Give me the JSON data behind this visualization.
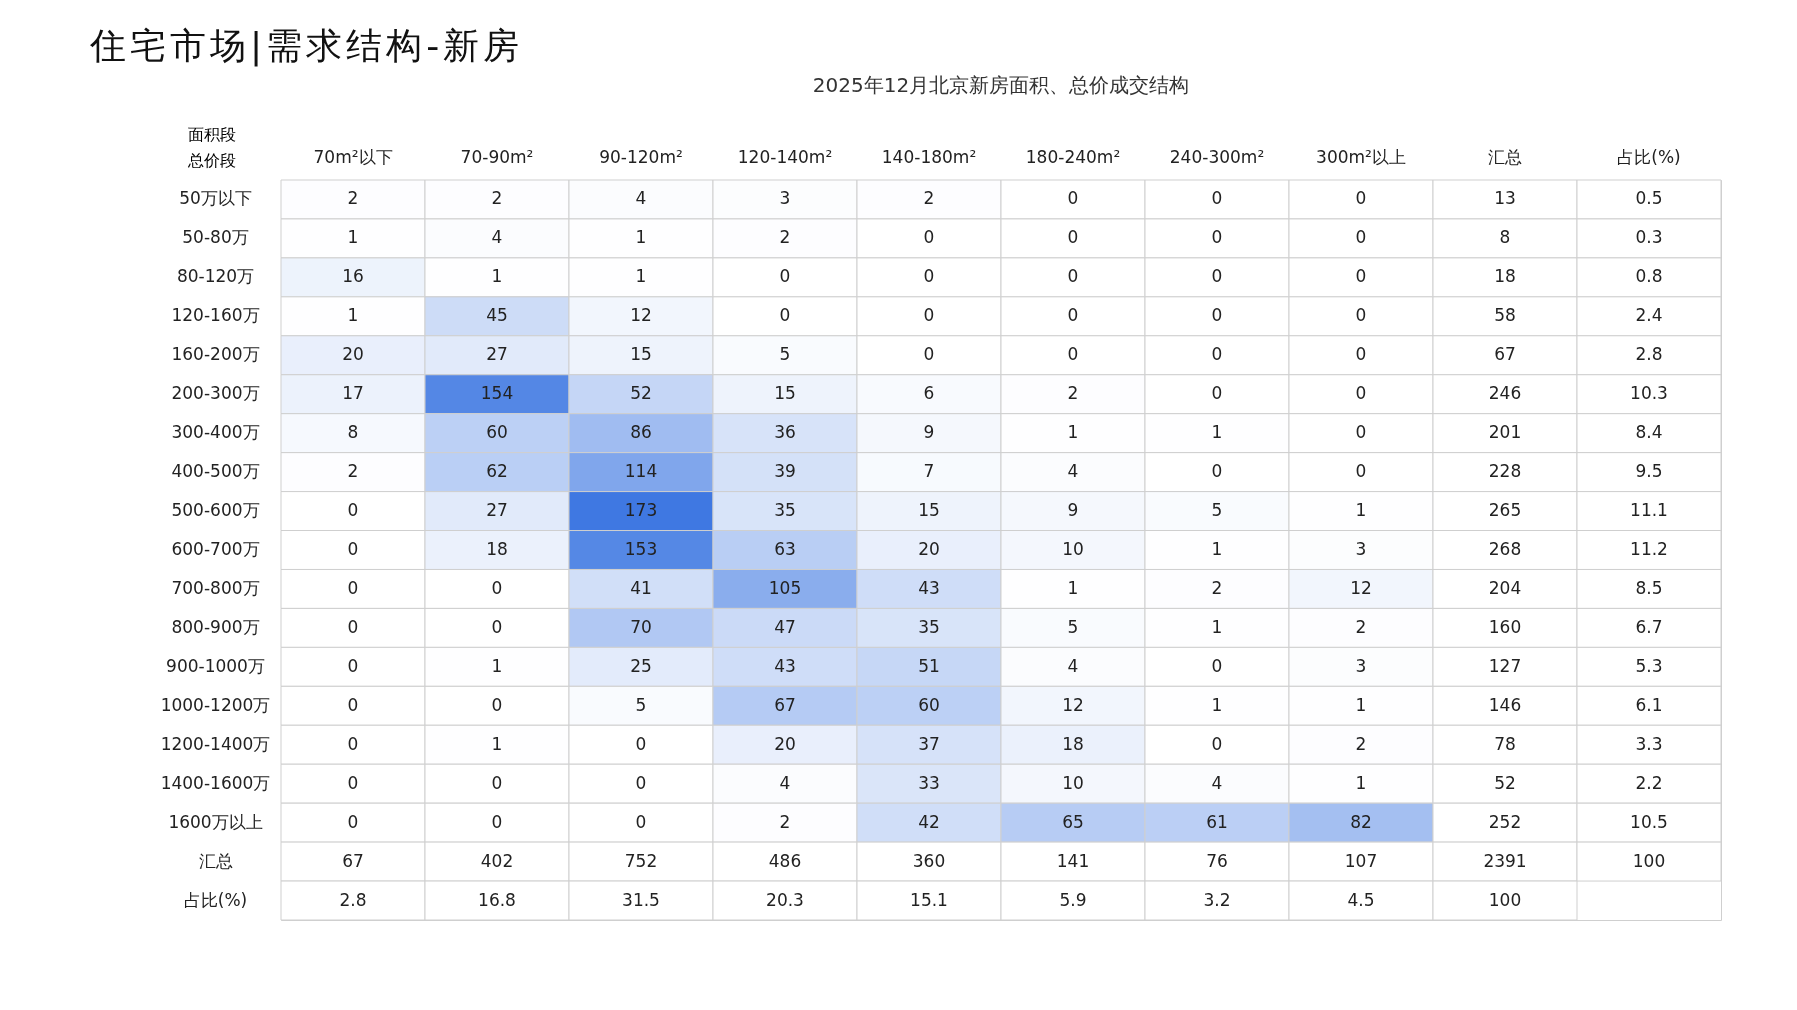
{
  "chart_data": {
    "type": "heatmap",
    "subtitle": "住宅市场|需求结构-新房",
    "title": "2025年12月北京新房面积、总价成交结构",
    "xlabel": "面积段",
    "ylabel": "总价段",
    "categories": [
      "70m²以下",
      "70-90m²",
      "90-120m²",
      "120-140m²",
      "140-180m²",
      "180-240m²",
      "240-300m²",
      "300m²以上",
      "汇总",
      "占比(%)"
    ],
    "y_categories": [
      "50万以下",
      "50-80万",
      "80-120万",
      "120-160万",
      "160-200万",
      "200-300万",
      "300-400万",
      "400-500万",
      "500-600万",
      "600-700万",
      "700-800万",
      "800-900万",
      "900-1000万",
      "1000-1200万",
      "1200-1400万",
      "1400-1600万",
      "1600万以上",
      "汇总",
      "占比(%)"
    ],
    "cells": [
      [
        2,
        2,
        4,
        3,
        2,
        0,
        0,
        0,
        13,
        0.5
      ],
      [
        1,
        4,
        1,
        2,
        0,
        0,
        0,
        0,
        8,
        0.3
      ],
      [
        16,
        1,
        1,
        0,
        0,
        0,
        0,
        0,
        18,
        0.8
      ],
      [
        1,
        45,
        12,
        0,
        0,
        0,
        0,
        0,
        58,
        2.4
      ],
      [
        20,
        27,
        15,
        5,
        0,
        0,
        0,
        0,
        67,
        2.8
      ],
      [
        17,
        154,
        52,
        15,
        6,
        2,
        0,
        0,
        246,
        10.3
      ],
      [
        8,
        60,
        86,
        36,
        9,
        1,
        1,
        0,
        201,
        8.4
      ],
      [
        2,
        62,
        114,
        39,
        7,
        4,
        0,
        0,
        228,
        9.5
      ],
      [
        0,
        27,
        173,
        35,
        15,
        9,
        5,
        1,
        265,
        11.1
      ],
      [
        0,
        18,
        153,
        63,
        20,
        10,
        1,
        3,
        268,
        11.2
      ],
      [
        0,
        0,
        41,
        105,
        43,
        1,
        2,
        12,
        204,
        8.5
      ],
      [
        0,
        0,
        70,
        47,
        35,
        5,
        1,
        2,
        160,
        6.7
      ],
      [
        0,
        1,
        25,
        43,
        51,
        4,
        0,
        3,
        127,
        5.3
      ],
      [
        0,
        0,
        5,
        67,
        60,
        12,
        1,
        1,
        146,
        6.1
      ],
      [
        0,
        1,
        0,
        20,
        37,
        18,
        0,
        2,
        78,
        3.3
      ],
      [
        0,
        0,
        0,
        4,
        33,
        10,
        4,
        1,
        52,
        2.2
      ],
      [
        0,
        0,
        0,
        2,
        42,
        65,
        61,
        82,
        252,
        10.5
      ],
      [
        67,
        402,
        752,
        486,
        360,
        141,
        76,
        107,
        2391,
        100
      ],
      [
        2.8,
        16.8,
        31.5,
        20.3,
        15.1,
        5.9,
        3.2,
        4.5,
        100,
        null
      ]
    ],
    "data_labels": true
  }
}
